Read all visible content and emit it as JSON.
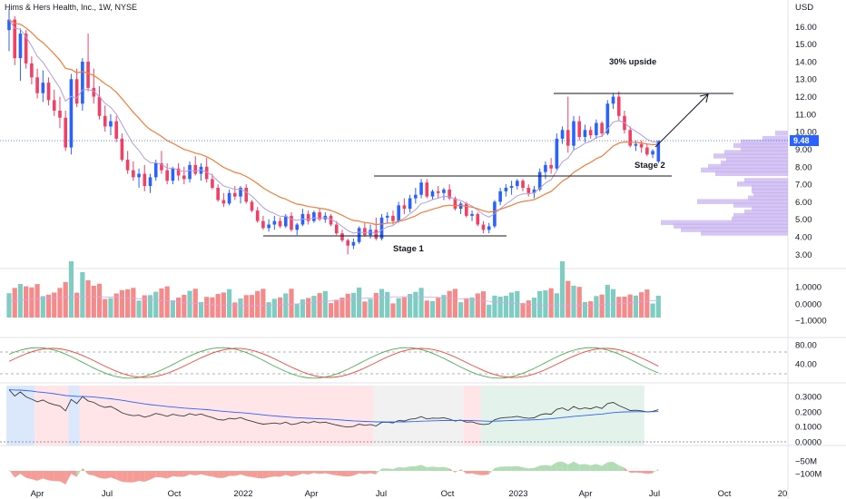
{
  "header": {
    "title": "Hims & Hers Health, Inc., 1W, NYSE",
    "currency": "USD"
  },
  "colors": {
    "up": "#2962ff",
    "down": "#f23f66",
    "ema_fast": "#b39ddb",
    "ema_slow": "#f57c3a",
    "volume_up": "#7ecdc3",
    "volume_down": "#f48a8a",
    "stoch_k": "#4caf50",
    "stoch_d": "#f44336",
    "profile": "#c7b3ef",
    "rs_line": "#3a3a3a",
    "rs_ma": "#2962ff",
    "obv_up": "#a5d6a7",
    "obv_down": "#f28b82",
    "price_label": "#2962ff"
  },
  "annotations": {
    "upside": "30% upside",
    "stage1": "Stage 1",
    "stage2": "Stage 2"
  },
  "chart_data": [
    {
      "type": "candlestick",
      "pane": "price",
      "ylim": [
        2.5,
        17.0
      ],
      "y_ticks": [
        "16.00",
        "15.00",
        "14.00",
        "13.00",
        "12.00",
        "11.00",
        "10.00",
        "9.00",
        "8.00",
        "7.00",
        "6.00",
        "5.00",
        "4.00",
        "3.00"
      ],
      "last_price": "9.48",
      "x_ticks": [
        "Apr",
        "Jul",
        "Oct",
        "2022",
        "Apr",
        "Jul",
        "Oct",
        "2023",
        "Apr",
        "Jul",
        "Oct",
        "20"
      ],
      "series": [
        {
          "name": "ohlc",
          "values": [
            [
              15.8,
              17.0,
              14.6,
              16.4
            ],
            [
              16.4,
              16.6,
              13.8,
              14.2
            ],
            [
              14.2,
              15.9,
              12.9,
              15.6
            ],
            [
              15.6,
              15.8,
              13.6,
              13.9
            ],
            [
              13.9,
              14.3,
              12.7,
              13.1
            ],
            [
              13.1,
              13.6,
              11.9,
              12.2
            ],
            [
              12.2,
              13.5,
              11.7,
              12.8
            ],
            [
              12.8,
              13.1,
              11.5,
              11.8
            ],
            [
              11.8,
              12.4,
              10.9,
              11.2
            ],
            [
              11.2,
              12.0,
              10.2,
              10.8
            ],
            [
              10.8,
              11.2,
              8.9,
              9.1
            ],
            [
              9.1,
              13.3,
              8.7,
              13.0
            ],
            [
              13.0,
              13.6,
              11.4,
              11.6
            ],
            [
              11.6,
              14.2,
              11.2,
              14.0
            ],
            [
              14.0,
              15.6,
              12.3,
              12.5
            ],
            [
              12.5,
              13.6,
              11.6,
              12.0
            ],
            [
              12.0,
              12.6,
              10.7,
              10.9
            ],
            [
              10.9,
              11.5,
              10.0,
              10.3
            ],
            [
              10.3,
              11.0,
              9.8,
              10.6
            ],
            [
              10.6,
              10.9,
              9.4,
              9.6
            ],
            [
              9.6,
              9.9,
              8.3,
              8.4
            ],
            [
              8.4,
              8.9,
              7.6,
              7.8
            ],
            [
              7.8,
              8.3,
              7.2,
              7.4
            ],
            [
              7.4,
              7.9,
              6.8,
              7.6
            ],
            [
              7.6,
              8.1,
              6.6,
              6.9
            ],
            [
              6.9,
              7.6,
              6.5,
              7.4
            ],
            [
              7.4,
              8.4,
              7.2,
              8.2
            ],
            [
              8.2,
              8.9,
              7.6,
              7.8
            ],
            [
              7.8,
              8.2,
              7.0,
              7.2
            ],
            [
              7.2,
              8.0,
              7.0,
              7.9
            ],
            [
              7.9,
              8.2,
              7.2,
              7.5
            ],
            [
              7.5,
              8.0,
              7.0,
              7.3
            ],
            [
              7.3,
              8.3,
              7.1,
              8.1
            ],
            [
              8.1,
              8.6,
              7.5,
              7.6
            ],
            [
              7.6,
              8.2,
              7.2,
              8.0
            ],
            [
              8.0,
              8.5,
              7.1,
              7.3
            ],
            [
              7.3,
              7.6,
              6.7,
              6.8
            ],
            [
              6.8,
              7.0,
              6.0,
              6.1
            ],
            [
              6.1,
              6.5,
              5.7,
              5.9
            ],
            [
              5.9,
              6.7,
              5.8,
              6.5
            ],
            [
              6.5,
              6.9,
              6.1,
              6.3
            ],
            [
              6.3,
              6.9,
              5.9,
              6.8
            ],
            [
              6.8,
              7.0,
              5.9,
              6.0
            ],
            [
              6.0,
              6.1,
              5.4,
              5.5
            ],
            [
              5.5,
              5.7,
              4.8,
              4.9
            ],
            [
              4.9,
              5.2,
              4.4,
              4.5
            ],
            [
              4.5,
              5.0,
              4.3,
              4.7
            ],
            [
              4.7,
              5.2,
              4.4,
              4.9
            ],
            [
              4.9,
              5.1,
              4.5,
              4.6
            ],
            [
              4.6,
              5.3,
              4.5,
              5.2
            ],
            [
              5.2,
              5.4,
              4.3,
              4.4
            ],
            [
              4.4,
              4.8,
              4.1,
              4.7
            ],
            [
              4.7,
              5.6,
              4.6,
              5.3
            ],
            [
              5.3,
              5.5,
              4.7,
              4.9
            ],
            [
              4.9,
              5.5,
              4.8,
              5.4
            ],
            [
              5.4,
              5.6,
              4.9,
              5.0
            ],
            [
              5.0,
              5.4,
              4.8,
              5.2
            ],
            [
              5.2,
              5.3,
              4.6,
              4.7
            ],
            [
              4.7,
              4.9,
              4.1,
              4.2
            ],
            [
              4.2,
              4.4,
              3.7,
              3.8
            ],
            [
              3.8,
              3.9,
              3.0,
              3.5
            ],
            [
              3.5,
              3.9,
              3.3,
              3.7
            ],
            [
              3.7,
              4.6,
              3.6,
              4.5
            ],
            [
              4.5,
              4.8,
              4.0,
              4.1
            ],
            [
              4.1,
              4.7,
              3.9,
              4.4
            ],
            [
              4.4,
              5.1,
              3.8,
              3.9
            ],
            [
              3.9,
              5.3,
              3.8,
              5.1
            ],
            [
              5.1,
              5.4,
              4.8,
              5.2
            ],
            [
              5.2,
              5.5,
              4.7,
              4.9
            ],
            [
              4.9,
              6.0,
              4.8,
              5.8
            ],
            [
              5.8,
              6.2,
              5.3,
              5.6
            ],
            [
              5.6,
              6.4,
              5.4,
              6.2
            ],
            [
              6.2,
              6.8,
              5.9,
              6.4
            ],
            [
              6.4,
              7.3,
              6.2,
              7.1
            ],
            [
              7.1,
              7.3,
              6.2,
              6.3
            ],
            [
              6.3,
              6.7,
              6.1,
              6.6
            ],
            [
              6.6,
              6.9,
              6.2,
              6.5
            ],
            [
              6.5,
              6.8,
              6.1,
              6.7
            ],
            [
              6.7,
              7.0,
              6.1,
              6.2
            ],
            [
              6.2,
              6.3,
              5.5,
              5.6
            ],
            [
              5.6,
              6.0,
              5.3,
              5.9
            ],
            [
              5.9,
              6.0,
              5.1,
              5.2
            ],
            [
              5.2,
              5.5,
              4.9,
              5.3
            ],
            [
              5.3,
              5.4,
              4.6,
              4.7
            ],
            [
              4.7,
              4.9,
              4.2,
              4.4
            ],
            [
              4.4,
              4.8,
              4.2,
              4.6
            ],
            [
              4.6,
              6.1,
              4.5,
              6.0
            ],
            [
              6.0,
              6.8,
              5.8,
              6.6
            ],
            [
              6.6,
              7.0,
              6.3,
              6.8
            ],
            [
              6.8,
              7.2,
              6.4,
              6.9
            ],
            [
              6.9,
              7.3,
              6.7,
              7.2
            ],
            [
              7.2,
              7.3,
              6.6,
              6.8
            ],
            [
              6.8,
              7.0,
              6.3,
              6.5
            ],
            [
              6.5,
              6.9,
              6.2,
              6.7
            ],
            [
              6.7,
              7.9,
              6.6,
              7.7
            ],
            [
              7.7,
              8.3,
              7.3,
              8.1
            ],
            [
              8.1,
              8.5,
              7.6,
              7.9
            ],
            [
              7.9,
              9.9,
              7.8,
              9.6
            ],
            [
              9.6,
              10.3,
              9.3,
              10.1
            ],
            [
              10.1,
              12.0,
              8.8,
              9.2
            ],
            [
              9.2,
              10.9,
              8.9,
              10.6
            ],
            [
              10.6,
              10.9,
              9.5,
              9.7
            ],
            [
              9.7,
              10.4,
              9.4,
              10.1
            ],
            [
              10.1,
              10.3,
              9.6,
              9.8
            ],
            [
              9.8,
              10.7,
              9.6,
              10.5
            ],
            [
              10.5,
              10.6,
              9.7,
              9.9
            ],
            [
              9.9,
              11.8,
              9.8,
              11.6
            ],
            [
              11.6,
              12.2,
              11.3,
              12.0
            ],
            [
              12.0,
              12.3,
              10.6,
              10.9
            ],
            [
              10.9,
              11.2,
              9.9,
              10.1
            ],
            [
              10.1,
              10.3,
              9.1,
              9.2
            ],
            [
              9.2,
              9.5,
              8.9,
              9.3
            ],
            [
              9.3,
              9.5,
              8.8,
              9.1
            ],
            [
              9.1,
              9.3,
              8.6,
              8.7
            ],
            [
              8.7,
              9.0,
              8.5,
              8.9
            ],
            [
              8.3,
              9.5,
              8.2,
              9.48
            ]
          ]
        }
      ]
    },
    {
      "type": "bar",
      "pane": "volume",
      "y_ticks": [
        "1.0000",
        "0.0000",
        "−1.0000"
      ],
      "series": [
        {
          "name": "volume",
          "values": []
        }
      ]
    },
    {
      "type": "line",
      "pane": "stochastic",
      "y_ticks": [
        "80.00",
        "40.00"
      ],
      "series": [
        {
          "name": "k",
          "values": []
        },
        {
          "name": "d",
          "values": []
        }
      ]
    },
    {
      "type": "line",
      "pane": "relative-strength",
      "y_ticks": [
        "0.3000",
        "0.2000",
        "0.1000",
        "0.0000"
      ],
      "series": [
        {
          "name": "rs",
          "values": []
        },
        {
          "name": "rs_ma",
          "values": []
        }
      ]
    },
    {
      "type": "area",
      "pane": "obv",
      "y_ticks": [
        "−50M",
        "−100M"
      ],
      "series": [
        {
          "name": "obv",
          "values": []
        }
      ]
    }
  ]
}
